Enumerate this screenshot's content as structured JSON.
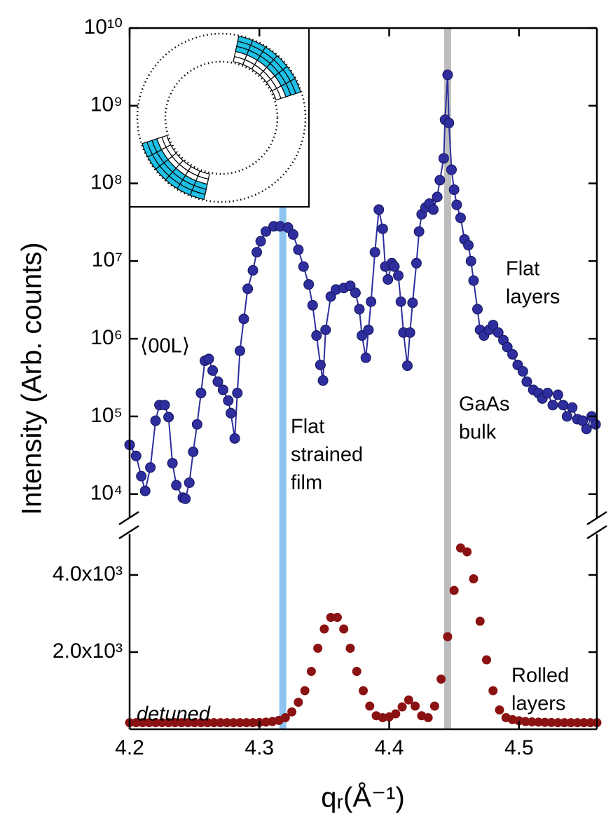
{
  "chart_data": [
    {
      "type": "line",
      "yscale": "log",
      "ylabel": "Intensity (Arb. counts)",
      "xlim": [
        4.2,
        4.56
      ],
      "ylim": [
        5000,
        10000000000
      ],
      "yticks": [
        {
          "value": 10000,
          "label": "10⁴"
        },
        {
          "value": 100000,
          "label": "10⁵"
        },
        {
          "value": 1000000,
          "label": "10⁶"
        },
        {
          "value": 10000000,
          "label": "10⁷"
        },
        {
          "value": 100000000,
          "label": "10⁸"
        },
        {
          "value": 1000000000,
          "label": "10⁹"
        },
        {
          "value": 10000000000,
          "label": "10¹⁰"
        }
      ],
      "bands": [
        {
          "x": 4.318,
          "color": "#8ec3f0"
        },
        {
          "x": 4.445,
          "color": "#bdbdbd"
        }
      ],
      "annotations": [
        [
          "⟨00L⟩"
        ],
        [
          "Flat",
          "strained",
          "film"
        ],
        [
          "GaAs",
          "bulk"
        ],
        [
          "Flat",
          "layers"
        ]
      ],
      "series": [
        {
          "color": "#2e2e9e",
          "x": [
            4.2,
            4.205,
            4.209,
            4.212,
            4.216,
            4.22,
            4.223,
            4.227,
            4.23,
            4.233,
            4.236,
            4.241,
            4.243,
            4.246,
            4.249,
            4.252,
            4.255,
            4.258,
            4.261,
            4.264,
            4.268,
            4.272,
            4.276,
            4.278,
            4.281,
            4.283,
            4.285,
            4.288,
            4.291,
            4.295,
            4.298,
            4.301,
            4.305,
            4.311,
            4.316,
            4.322,
            4.326,
            4.33,
            4.334,
            4.338,
            4.341,
            4.344,
            4.347,
            4.349,
            4.351,
            4.355,
            4.359,
            4.365,
            4.37,
            4.374,
            4.377,
            4.379,
            4.382,
            4.384,
            4.386,
            4.389,
            4.392,
            4.395,
            4.397,
            4.399,
            4.402,
            4.404,
            4.407,
            4.409,
            4.411,
            4.414,
            4.416,
            4.418,
            4.421,
            4.423,
            4.425,
            4.428,
            4.431,
            4.434,
            4.437,
            4.439,
            4.442,
            4.443,
            4.445,
            4.446,
            4.448,
            4.45,
            4.452,
            4.455,
            4.458,
            4.461,
            4.463,
            4.465,
            4.468,
            4.47,
            4.473,
            4.477,
            4.48,
            4.484,
            4.488,
            4.491,
            4.495,
            4.499,
            4.503,
            4.506,
            4.511,
            4.515,
            4.518,
            4.522,
            4.526,
            4.53,
            4.534,
            4.537,
            4.541,
            4.545,
            4.549,
            4.552,
            4.556,
            4.559
          ],
          "values": [
            43000,
            31000,
            17000,
            11000,
            22000,
            88000,
            140000,
            140000,
            98000,
            25000,
            13000,
            9000,
            8700,
            14000,
            35000,
            79000,
            200000,
            520000,
            550000,
            390000,
            280000,
            220000,
            160000,
            110000,
            52000,
            200000,
            700000,
            1800000,
            4400000,
            7600000,
            13000000,
            18000000,
            24000000,
            28000000,
            28000000,
            27000000,
            22000000,
            14000000,
            8500000,
            5000000,
            2700000,
            1100000,
            460000,
            290000,
            1300000,
            3500000,
            4300000,
            4500000,
            4800000,
            3900000,
            2400000,
            1100000,
            570000,
            1300000,
            3000000,
            13000000,
            46000000,
            26000000,
            8500000,
            5800000,
            9400000,
            8500000,
            6500000,
            3000000,
            1200000,
            450000,
            1200000,
            2900000,
            9400000,
            24000000,
            40000000,
            49000000,
            55000000,
            46000000,
            67000000,
            110000000,
            210000000,
            660000000,
            2500000000,
            600000000,
            150000000,
            83000000,
            53000000,
            36000000,
            19000000,
            16000000,
            10000000,
            5600000,
            2400000,
            1300000,
            1100000,
            1300000,
            1500000,
            1200000,
            960000,
            780000,
            630000,
            460000,
            380000,
            280000,
            220000,
            200000,
            170000,
            200000,
            140000,
            190000,
            140000,
            100000,
            130000,
            92000,
            88000,
            69000,
            100000,
            79000
          ]
        }
      ]
    },
    {
      "type": "scatter",
      "xlabel": "qᵣ(Å⁻¹)",
      "xlim": [
        4.2,
        4.56
      ],
      "xticks": [
        4.2,
        4.3,
        4.4,
        4.5
      ],
      "ylim": [
        0,
        5000
      ],
      "yticks": [
        {
          "value": 2000,
          "label": "2.0x10³"
        },
        {
          "value": 4000,
          "label": "4.0x10³"
        }
      ],
      "annotations": [
        [
          "detuned"
        ],
        [
          "Rolled",
          "layers"
        ]
      ],
      "series": [
        {
          "color": "#8b1212",
          "x": [
            4.2,
            4.205,
            4.21,
            4.215,
            4.22,
            4.225,
            4.23,
            4.235,
            4.24,
            4.245,
            4.25,
            4.255,
            4.26,
            4.265,
            4.27,
            4.275,
            4.28,
            4.285,
            4.29,
            4.295,
            4.3,
            4.305,
            4.31,
            4.315,
            4.32,
            4.325,
            4.33,
            4.335,
            4.34,
            4.345,
            4.35,
            4.355,
            4.36,
            4.365,
            4.37,
            4.375,
            4.38,
            4.385,
            4.39,
            4.395,
            4.4,
            4.405,
            4.41,
            4.415,
            4.42,
            4.425,
            4.43,
            4.435,
            4.44,
            4.445,
            4.45,
            4.455,
            4.46,
            4.465,
            4.47,
            4.475,
            4.48,
            4.485,
            4.49,
            4.495,
            4.5,
            4.505,
            4.51,
            4.515,
            4.52,
            4.525,
            4.53,
            4.535,
            4.54,
            4.545,
            4.55,
            4.555,
            4.56
          ],
          "values": [
            170,
            170,
            170,
            170,
            170,
            170,
            170,
            170,
            170,
            170,
            170,
            170,
            170,
            170,
            170,
            170,
            170,
            170,
            170,
            170,
            175,
            185,
            200,
            230,
            300,
            450,
            700,
            1000,
            1500,
            2100,
            2600,
            2900,
            2900,
            2600,
            2100,
            1500,
            1000,
            600,
            350,
            300,
            320,
            400,
            580,
            760,
            600,
            350,
            300,
            600,
            1300,
            2400,
            3600,
            4700,
            4600,
            3900,
            2800,
            1800,
            1000,
            500,
            300,
            250,
            220,
            200,
            190,
            185,
            180,
            175,
            170,
            170,
            170,
            170,
            170,
            170,
            170
          ]
        }
      ]
    }
  ]
}
